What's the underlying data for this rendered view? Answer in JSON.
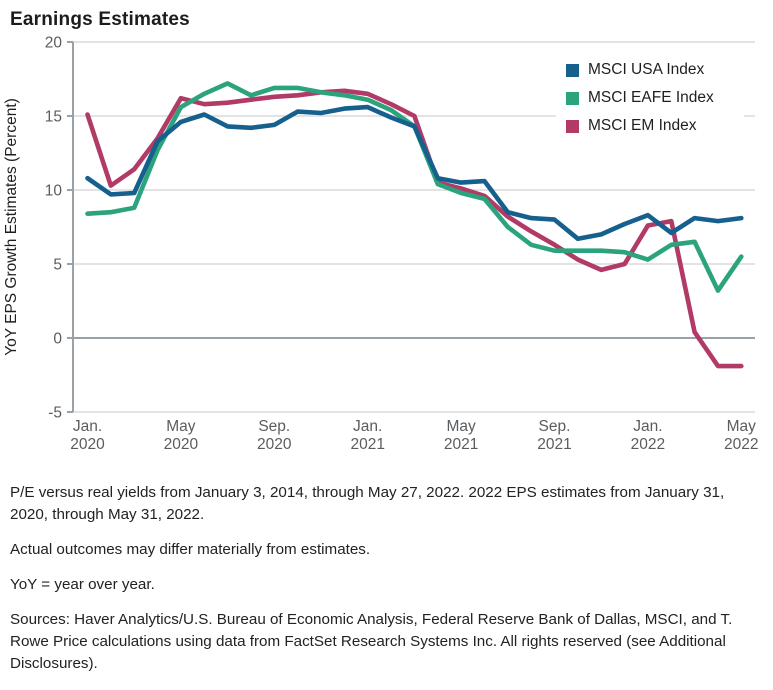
{
  "title": "Earnings Estimates",
  "chart_data": {
    "type": "line",
    "title": "Earnings Estimates",
    "xlabel": "",
    "ylabel": "YoY EPS Growth Estimates (Percent)",
    "ylim": [
      -5,
      20
    ],
    "yticks": [
      20,
      15,
      10,
      5,
      0,
      -5
    ],
    "grid": true,
    "legend_position": "top-right-inside",
    "months": [
      "Jan. 2020",
      "Feb. 2020",
      "Mar. 2020",
      "Apr. 2020",
      "May 2020",
      "Jun. 2020",
      "Jul. 2020",
      "Aug. 2020",
      "Sep. 2020",
      "Oct. 2020",
      "Nov. 2020",
      "Dec. 2020",
      "Jan. 2021",
      "Feb. 2021",
      "Mar. 2021",
      "Apr. 2021",
      "May 2021",
      "Jun. 2021",
      "Jul. 2021",
      "Aug. 2021",
      "Sep. 2021",
      "Oct. 2021",
      "Nov. 2021",
      "Dec. 2021",
      "Jan. 2022",
      "Feb. 2022",
      "Mar. 2022",
      "Apr. 2022",
      "May 2022"
    ],
    "x_tick_indices": [
      0,
      4,
      8,
      12,
      16,
      20,
      24,
      28
    ],
    "x_tick_labels": [
      [
        "Jan.",
        "2020"
      ],
      [
        "May",
        "2020"
      ],
      [
        "Sep.",
        "2020"
      ],
      [
        "Jan.",
        "2021"
      ],
      [
        "May",
        "2021"
      ],
      [
        "Sep.",
        "2021"
      ],
      [
        "Jan.",
        "2022"
      ],
      [
        "May",
        "2022"
      ]
    ],
    "series": [
      {
        "name": "MSCI USA Index",
        "color": "#15608C",
        "values": [
          10.8,
          9.7,
          9.8,
          13.3,
          14.6,
          15.1,
          14.3,
          14.2,
          14.4,
          15.3,
          15.2,
          15.5,
          15.6,
          14.9,
          14.3,
          10.8,
          10.5,
          10.6,
          8.5,
          8.1,
          8.0,
          6.7,
          7.0,
          7.7,
          8.3,
          7.1,
          8.1,
          7.9,
          8.1
        ]
      },
      {
        "name": "MSCI EAFE Index",
        "color": "#2BA47D",
        "values": [
          8.4,
          8.5,
          8.8,
          12.7,
          15.6,
          16.5,
          17.2,
          16.4,
          16.9,
          16.9,
          16.6,
          16.4,
          16.1,
          15.4,
          14.3,
          10.4,
          9.8,
          9.4,
          7.5,
          6.3,
          5.9,
          5.9,
          5.9,
          5.8,
          5.3,
          6.3,
          6.5,
          3.2,
          5.5
        ]
      },
      {
        "name": "MSCI EM Index",
        "color": "#B13A67",
        "values": [
          15.1,
          10.3,
          11.4,
          13.5,
          16.2,
          15.8,
          15.9,
          16.1,
          16.3,
          16.4,
          16.6,
          16.7,
          16.5,
          15.8,
          15.0,
          10.5,
          10.1,
          9.6,
          8.2,
          7.2,
          6.3,
          5.3,
          4.6,
          5.0,
          7.6,
          7.9,
          0.4,
          -1.9,
          -1.9
        ]
      }
    ],
    "style": {
      "grid_color": "#d2d2d2",
      "zero_line_color": "#97a1a6",
      "axis_color": "#9aa2a7",
      "tick_text_color": "#5a5d60",
      "line_width": 4.6
    }
  },
  "footnotes": [
    "P/E versus real yields from January 3, 2014, through May 27, 2022. 2022 EPS estimates from January 31, 2020, through May 31, 2022.",
    "Actual outcomes may differ materially from estimates.",
    "YoY = year over year.",
    "Sources: Haver Analytics/U.S. Bureau of Economic Analysis, Federal Reserve Bank of Dallas, MSCI, and T. Rowe Price calculations using data from FactSet Research Systems Inc. All rights reserved (see Additional Disclosures)."
  ]
}
